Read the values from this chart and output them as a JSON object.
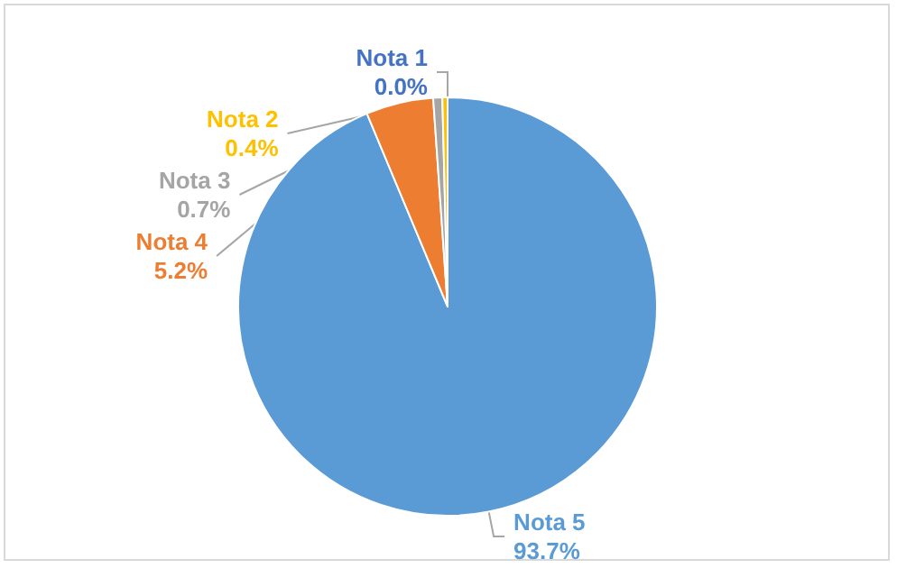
{
  "chart_data": {
    "type": "pie",
    "categories": [
      "Nota 5",
      "Nota 4",
      "Nota 3",
      "Nota 2",
      "Nota 1"
    ],
    "values": [
      93.7,
      5.2,
      0.7,
      0.4,
      0.0
    ],
    "colors": [
      "#5b9bd5",
      "#ed7d31",
      "#a5a5a5",
      "#ffc000",
      "#4472c4"
    ],
    "value_labels": [
      "93.7%",
      "5.2%",
      "0.7%",
      "0.4%",
      "0.0%"
    ],
    "legend": false
  }
}
